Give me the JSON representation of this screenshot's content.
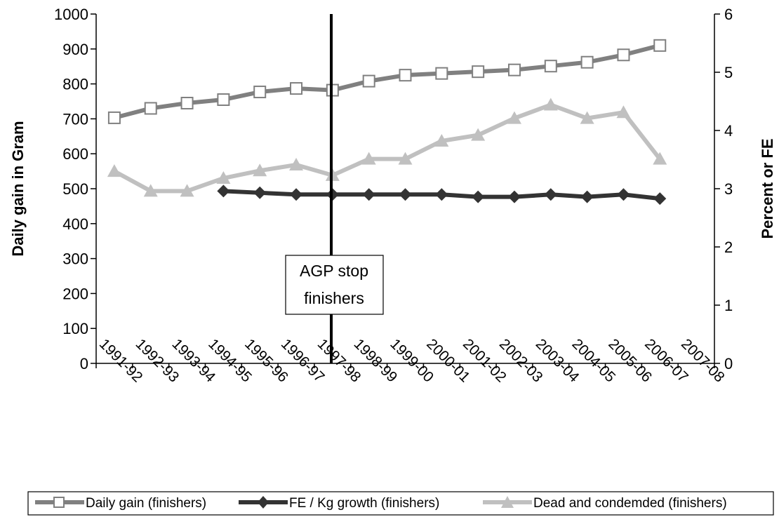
{
  "chart_data": {
    "type": "line",
    "categories": [
      "1991-92",
      "1992-93",
      "1993-94",
      "1994-95",
      "1995-96",
      "1996-97",
      "1997-98",
      "1998-99",
      "1999-00",
      "2000-01",
      "2001-02",
      "2002-03",
      "2003-04",
      "2004-05",
      "2005-06",
      "2006-07",
      "2007-08"
    ],
    "y_left": {
      "label": "Daily gain in Gram",
      "min": 0,
      "max": 1000,
      "step": 100,
      "ticks": [
        "0",
        "100",
        "200",
        "300",
        "400",
        "500",
        "600",
        "700",
        "800",
        "900",
        "1000"
      ]
    },
    "y_right": {
      "label": "Percent or FE",
      "min": 0,
      "max": 6,
      "step": 1,
      "ticks": [
        "0",
        "1",
        "2",
        "3",
        "4",
        "5",
        "6"
      ]
    },
    "series": [
      {
        "name": "Daily gain (finishers)",
        "axis": "left",
        "color": "#808080",
        "marker": "square-open",
        "values": [
          703,
          730,
          745,
          755,
          777,
          787,
          782,
          808,
          825,
          830,
          835,
          840,
          851,
          862,
          883,
          910,
          null
        ]
      },
      {
        "name": "FE / Kg growth (finishers)",
        "axis": "right",
        "color": "#333333",
        "marker": "diamond",
        "values": [
          null,
          null,
          null,
          2.96,
          2.93,
          2.9,
          2.9,
          2.9,
          2.9,
          2.9,
          2.86,
          2.86,
          2.9,
          2.86,
          2.9,
          2.83,
          null
        ]
      },
      {
        "name": "Dead and condemded (finishers)",
        "axis": "right",
        "color": "#c0c0c0",
        "marker": "triangle",
        "values": [
          3.3,
          2.96,
          2.96,
          3.18,
          3.31,
          3.41,
          3.23,
          3.51,
          3.51,
          3.82,
          3.92,
          4.21,
          4.44,
          4.21,
          4.31,
          3.51,
          null
        ]
      }
    ],
    "annotation": {
      "line1": "AGP stop",
      "line2": "finishers",
      "category_index": 5
    },
    "legend": {
      "placement": "bottom"
    },
    "grid": false
  }
}
